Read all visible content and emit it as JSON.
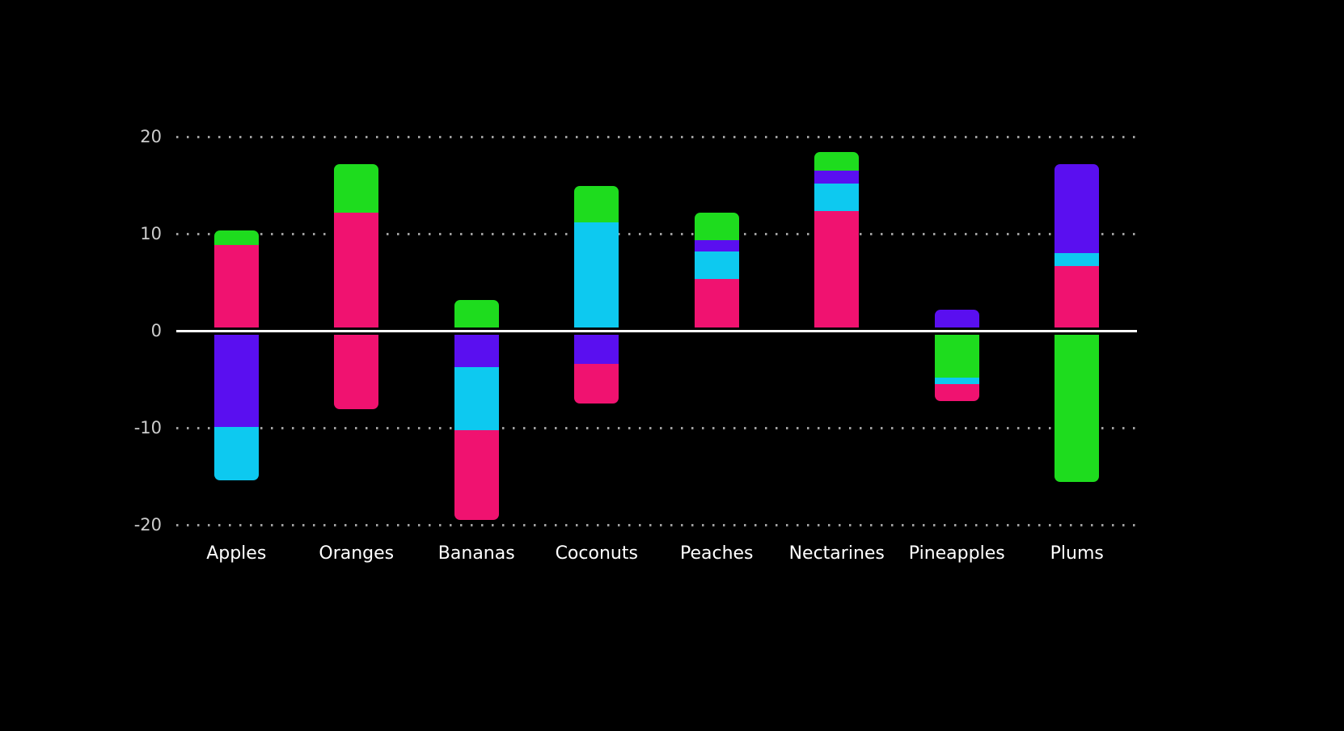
{
  "chart_data": {
    "type": "bar",
    "variant": "stacked-positive-negative",
    "title": "",
    "legend": "none",
    "categories": [
      "Apples",
      "Oranges",
      "Bananas",
      "Coconuts",
      "Peaches",
      "Nectarines",
      "Pineapples",
      "Plums"
    ],
    "y_axis": {
      "min": -20,
      "max": 20,
      "tick_values": [
        20,
        10,
        0,
        -10,
        -20
      ],
      "tick_labels": [
        "20",
        "10",
        "0",
        "-10",
        "-20"
      ]
    },
    "grid": {
      "horizontal": "dotted",
      "zero_line": "solid"
    },
    "series_colors": {
      "pink": "#F01270",
      "cyan": "#0DC9F0",
      "purple": "#5A0FF0",
      "green": "#1EDC1E"
    },
    "ui_colors": {
      "background": "#000000",
      "grid_dots": "#A0A0A0",
      "zero_line": "#FFFFFF",
      "tick_label": "#CCCCCC",
      "category_label": "#FFFFFF"
    },
    "segment_order_note": "segments listed from the zero line outward",
    "bars": [
      {
        "category": "Apples",
        "positive": [
          {
            "color": "pink",
            "value": 8.5
          },
          {
            "color": "green",
            "value": 1.5
          }
        ],
        "negative": [
          {
            "color": "purple",
            "value": -9.5
          },
          {
            "color": "cyan",
            "value": -5.5
          }
        ]
      },
      {
        "category": "Oranges",
        "positive": [
          {
            "color": "pink",
            "value": 11.8
          },
          {
            "color": "green",
            "value": 5.0
          }
        ],
        "negative": [
          {
            "color": "pink",
            "value": -7.7
          }
        ]
      },
      {
        "category": "Bananas",
        "positive": [
          {
            "color": "green",
            "value": 2.8
          }
        ],
        "negative": [
          {
            "color": "purple",
            "value": -3.3
          },
          {
            "color": "cyan",
            "value": -6.5
          },
          {
            "color": "pink",
            "value": -9.3
          }
        ]
      },
      {
        "category": "Coconuts",
        "positive": [
          {
            "color": "cyan",
            "value": 10.8
          },
          {
            "color": "green",
            "value": 3.8
          }
        ],
        "negative": [
          {
            "color": "purple",
            "value": -3.0
          },
          {
            "color": "pink",
            "value": -4.1
          }
        ]
      },
      {
        "category": "Peaches",
        "positive": [
          {
            "color": "pink",
            "value": 5.0
          },
          {
            "color": "cyan",
            "value": 2.8
          },
          {
            "color": "purple",
            "value": 1.2
          },
          {
            "color": "green",
            "value": 2.8
          }
        ],
        "negative": []
      },
      {
        "category": "Nectarines",
        "positive": [
          {
            "color": "pink",
            "value": 12.0
          },
          {
            "color": "cyan",
            "value": 2.8
          },
          {
            "color": "purple",
            "value": 1.4
          },
          {
            "color": "green",
            "value": 1.9
          }
        ],
        "negative": []
      },
      {
        "category": "Pineapples",
        "positive": [
          {
            "color": "purple",
            "value": 1.8
          }
        ],
        "negative": [
          {
            "color": "green",
            "value": -4.4
          },
          {
            "color": "cyan",
            "value": -0.7
          },
          {
            "color": "pink",
            "value": -1.7
          }
        ]
      },
      {
        "category": "Plums",
        "positive": [
          {
            "color": "pink",
            "value": 6.3
          },
          {
            "color": "cyan",
            "value": 1.4
          },
          {
            "color": "purple",
            "value": 9.1
          }
        ],
        "negative": [
          {
            "color": "green",
            "value": -15.2
          }
        ]
      }
    ]
  }
}
